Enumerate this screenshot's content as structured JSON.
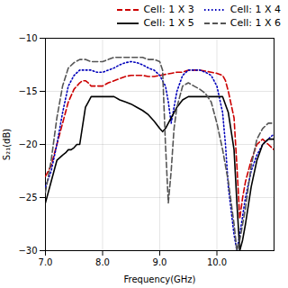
{
  "chart_data": {
    "type": "line",
    "xlabel": "Frequency(GHz)",
    "ylabel": "S₂₁(dB)",
    "xlim": [
      7,
      11
    ],
    "ylim": [
      -30,
      -10
    ],
    "xticks": [
      7,
      8,
      9,
      10
    ],
    "yticks": [
      -30,
      -25,
      -20,
      -15,
      -10
    ],
    "grid": true,
    "legend": "upper right",
    "series": [
      {
        "name": "Cell: 1 X 3",
        "color": "#cc0000",
        "line_style": "dashed",
        "x": [
          7.0,
          7.1,
          7.2,
          7.3,
          7.4,
          7.5,
          7.6,
          7.65,
          7.7,
          7.75,
          7.8,
          7.9,
          8.0,
          8.1,
          8.2,
          8.3,
          8.4,
          8.5,
          8.6,
          8.7,
          8.8,
          8.9,
          9.0,
          9.1,
          9.2,
          9.3,
          9.4,
          9.5,
          9.6,
          9.7,
          9.8,
          9.9,
          10.0,
          10.1,
          10.15,
          10.2,
          10.3,
          10.35,
          10.4,
          10.45,
          10.5,
          10.6,
          10.7,
          10.8,
          10.9,
          11.0
        ],
        "values": [
          -23.0,
          -22.0,
          -20.0,
          -18.0,
          -16.0,
          -14.8,
          -14.2,
          -14.0,
          -14.0,
          -14.2,
          -14.5,
          -14.5,
          -14.5,
          -14.2,
          -14.0,
          -13.8,
          -13.6,
          -13.5,
          -13.5,
          -13.5,
          -13.6,
          -13.6,
          -13.5,
          -13.4,
          -13.3,
          -13.2,
          -13.2,
          -13.0,
          -13.0,
          -13.0,
          -13.1,
          -13.2,
          -13.3,
          -13.5,
          -14.0,
          -15.0,
          -17.5,
          -22.0,
          -27.0,
          -25.0,
          -23.5,
          -21.5,
          -20.0,
          -19.5,
          -20.0,
          -20.5
        ]
      },
      {
        "name": "Cell: 1 X 4",
        "color": "#0000bb",
        "line_style": "dotted",
        "x": [
          7.0,
          7.1,
          7.2,
          7.3,
          7.4,
          7.5,
          7.6,
          7.7,
          7.8,
          7.9,
          8.0,
          8.1,
          8.2,
          8.3,
          8.4,
          8.5,
          8.6,
          8.7,
          8.8,
          8.9,
          9.0,
          9.1,
          9.15,
          9.2,
          9.3,
          9.4,
          9.5,
          9.6,
          9.7,
          9.8,
          9.9,
          10.0,
          10.1,
          10.15,
          10.2,
          10.3,
          10.35,
          10.4,
          10.5,
          10.6,
          10.7,
          10.8,
          10.9,
          11.0
        ],
        "values": [
          -24.0,
          -22.5,
          -20.0,
          -17.0,
          -14.5,
          -13.5,
          -13.0,
          -13.0,
          -13.0,
          -13.2,
          -13.2,
          -13.0,
          -12.8,
          -12.5,
          -12.3,
          -12.2,
          -12.3,
          -12.5,
          -12.8,
          -13.0,
          -13.5,
          -14.5,
          -16.0,
          -18.0,
          -15.0,
          -13.5,
          -13.0,
          -13.0,
          -13.0,
          -13.2,
          -13.5,
          -14.5,
          -17.0,
          -20.0,
          -24.0,
          -28.5,
          -30.0,
          -28.5,
          -25.0,
          -22.5,
          -21.0,
          -20.0,
          -19.5,
          -19.0
        ]
      },
      {
        "name": "Cell: 1 X 5",
        "color": "#000000",
        "line_style": "solid",
        "x": [
          7.0,
          7.1,
          7.2,
          7.3,
          7.35,
          7.4,
          7.45,
          7.5,
          7.55,
          7.6,
          7.7,
          7.75,
          7.8,
          7.85,
          7.9,
          8.0,
          8.1,
          8.2,
          8.3,
          8.4,
          8.5,
          8.6,
          8.7,
          8.8,
          8.9,
          9.0,
          9.05,
          9.1,
          9.15,
          9.2,
          9.3,
          9.4,
          9.5,
          9.6,
          9.7,
          9.8,
          9.9,
          10.0,
          10.1,
          10.2,
          10.3,
          10.35,
          10.4,
          10.45,
          10.5,
          10.6,
          10.7,
          10.8,
          10.9,
          11.0
        ],
        "values": [
          -25.5,
          -23.5,
          -21.5,
          -21.0,
          -20.8,
          -20.5,
          -20.5,
          -20.3,
          -20.0,
          -20.0,
          -16.5,
          -16.0,
          -15.5,
          -15.5,
          -15.5,
          -15.5,
          -15.5,
          -15.5,
          -15.8,
          -16.0,
          -16.2,
          -16.5,
          -16.8,
          -17.2,
          -17.8,
          -18.5,
          -18.8,
          -18.5,
          -18.0,
          -17.5,
          -16.5,
          -15.8,
          -15.5,
          -15.5,
          -15.5,
          -15.5,
          -15.5,
          -15.5,
          -15.5,
          -17.0,
          -20.5,
          -25.5,
          -30.0,
          -29.0,
          -27.5,
          -24.0,
          -21.5,
          -20.0,
          -19.5,
          -19.5
        ]
      },
      {
        "name": "Cell: 1 X 6",
        "color": "#555555",
        "line_style": "dashed",
        "x": [
          7.0,
          7.1,
          7.2,
          7.3,
          7.4,
          7.5,
          7.6,
          7.7,
          7.8,
          7.9,
          8.0,
          8.1,
          8.2,
          8.3,
          8.4,
          8.5,
          8.6,
          8.7,
          8.8,
          8.9,
          9.0,
          9.05,
          9.1,
          9.15,
          9.2,
          9.25,
          9.3,
          9.4,
          9.5,
          9.6,
          9.7,
          9.8,
          9.9,
          10.0,
          10.1,
          10.2,
          10.3,
          10.35,
          10.4,
          10.5,
          10.6,
          10.7,
          10.8,
          10.9,
          11.0
        ],
        "values": [
          -24.5,
          -21.5,
          -17.5,
          -14.5,
          -12.8,
          -12.3,
          -12.0,
          -12.0,
          -12.2,
          -12.2,
          -12.2,
          -12.0,
          -11.8,
          -11.8,
          -11.8,
          -11.8,
          -11.8,
          -11.8,
          -12.0,
          -12.0,
          -12.2,
          -13.0,
          -20.0,
          -25.5,
          -22.5,
          -18.5,
          -16.5,
          -14.5,
          -14.2,
          -14.5,
          -14.8,
          -15.2,
          -16.0,
          -18.0,
          -20.5,
          -23.5,
          -27.5,
          -30.0,
          -29.0,
          -26.0,
          -22.0,
          -19.5,
          -18.5,
          -18.0,
          -18.0
        ]
      }
    ]
  }
}
